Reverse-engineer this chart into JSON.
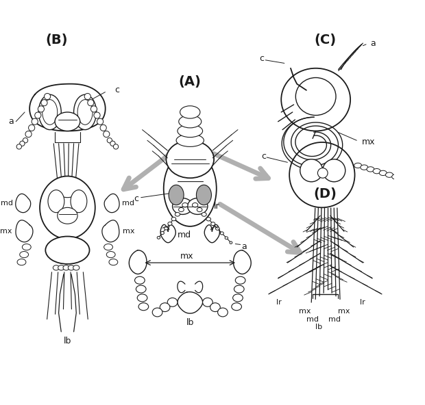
{
  "background_color": "#ffffff",
  "line_color": "#1a1a1a",
  "label_color": "#1a1a1a",
  "arrow_color": "#b0b0b0",
  "panel_B_label": "(B)",
  "panel_A_label": "(A)",
  "panel_C_label": "(C)",
  "panel_D_label": "(D)",
  "parts_labels": [
    "lr",
    "md",
    "mx",
    "lb"
  ],
  "anatomical_labels": [
    "a",
    "c",
    "md",
    "mx",
    "lb",
    "lr"
  ],
  "figsize": [
    6.2,
    5.92
  ],
  "dpi": 100
}
